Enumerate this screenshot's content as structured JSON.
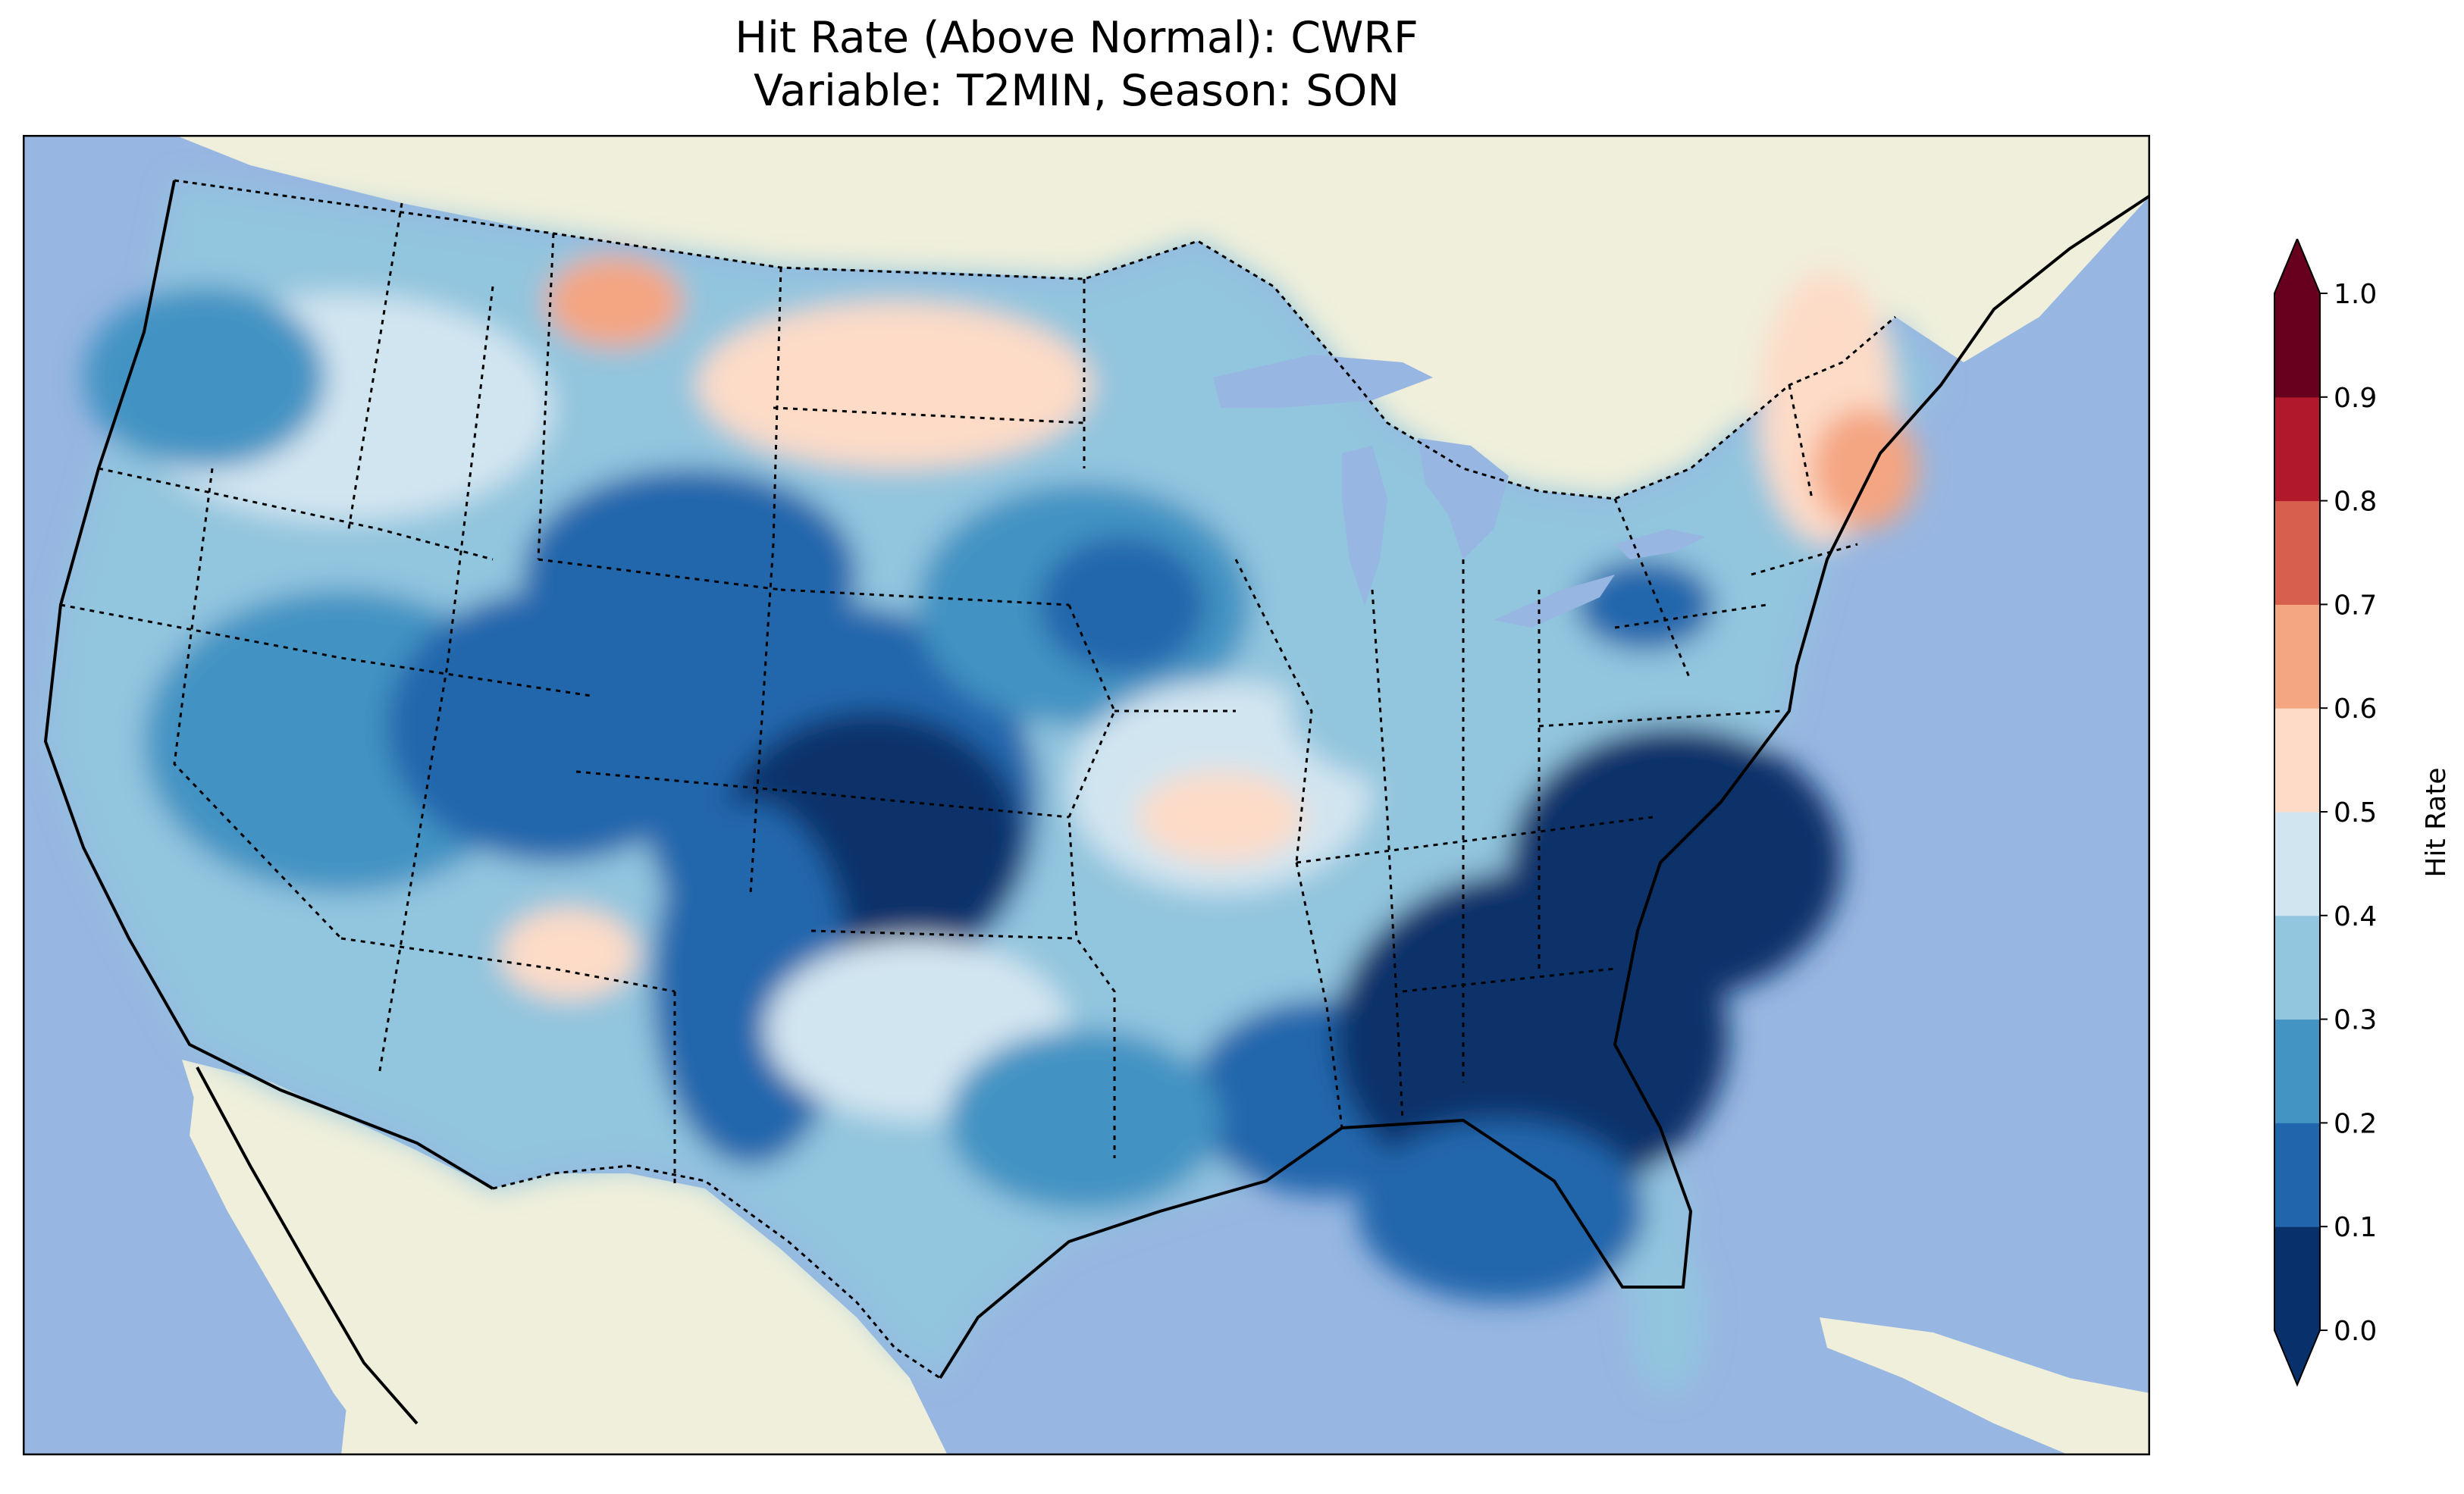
{
  "title": {
    "line1": "Hit Rate (Above Normal): CWRF",
    "line2": "Variable: T2MIN, Season: SON"
  },
  "colorbar": {
    "label": "Hit Rate",
    "ticks": [
      "0.0",
      "0.1",
      "0.2",
      "0.3",
      "0.4",
      "0.5",
      "0.6",
      "0.7",
      "0.8",
      "0.9",
      "1.0"
    ],
    "colors": [
      "#08306b",
      "#2166ac",
      "#4393c3",
      "#92c5de",
      "#d1e5f0",
      "#fddbc7",
      "#f4a582",
      "#d6604d",
      "#b2182b",
      "#67001f"
    ],
    "under_color": "#08306b",
    "over_color": "#67001f",
    "extend": "both"
  },
  "map": {
    "projection": "lambert-conformal",
    "region": "CONUS",
    "ocean_color": "#97b6e1",
    "land_color": "#efefdb",
    "features": [
      "coastlines",
      "country-borders",
      "state-borders",
      "lakes"
    ]
  }
}
